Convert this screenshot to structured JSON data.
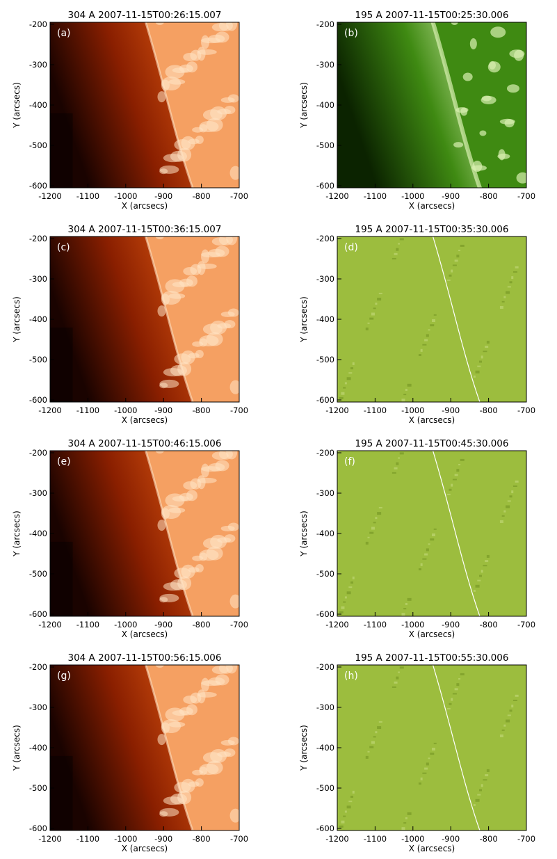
{
  "figure": {
    "colors": {
      "aia304_dark": "#1a0300",
      "aia304_mid": "#8a1f00",
      "aia304_limb": "#d4520f",
      "aia304_disk": "#f5a062",
      "aia304_bright": "#ffe3c4",
      "euvi195_dark": "#0b2300",
      "euvi195_mid": "#3f8a12",
      "euvi195_bright": "#d8f0b0",
      "diff195": "#9cbd3e",
      "diff195_dark": "#6f8f1f",
      "diff195_light": "#c8dc82"
    },
    "panels": [
      {
        "label": "(a)",
        "title": "304 A   2007-11-15T00:26:15.007",
        "type": "304"
      },
      {
        "label": "(b)",
        "title": "195 A   2007-11-15T00:25:30.006",
        "type": "195"
      },
      {
        "label": "(c)",
        "title": "304 A   2007-11-15T00:36:15.007",
        "type": "304"
      },
      {
        "label": "(d)",
        "title": "195 A   2007-11-15T00:35:30.006",
        "type": "diff"
      },
      {
        "label": "(e)",
        "title": "304 A   2007-11-15T00:46:15.006",
        "type": "304"
      },
      {
        "label": "(f)",
        "title": "195 A   2007-11-15T00:45:30.006",
        "type": "diff"
      },
      {
        "label": "(g)",
        "title": "304 A   2007-11-15T00:56:15.006",
        "type": "304"
      },
      {
        "label": "(h)",
        "title": "195 A   2007-11-15T00:55:30.006",
        "type": "diff"
      }
    ],
    "xlabel": "X (arcsecs)",
    "ylabel": "Y (arcsecs)",
    "xticks": [
      "-1200",
      "-1100",
      "-1000",
      "-900",
      "-800",
      "-700"
    ],
    "yticks": [
      "-200",
      "-300",
      "-400",
      "-500",
      "-600"
    ]
  }
}
